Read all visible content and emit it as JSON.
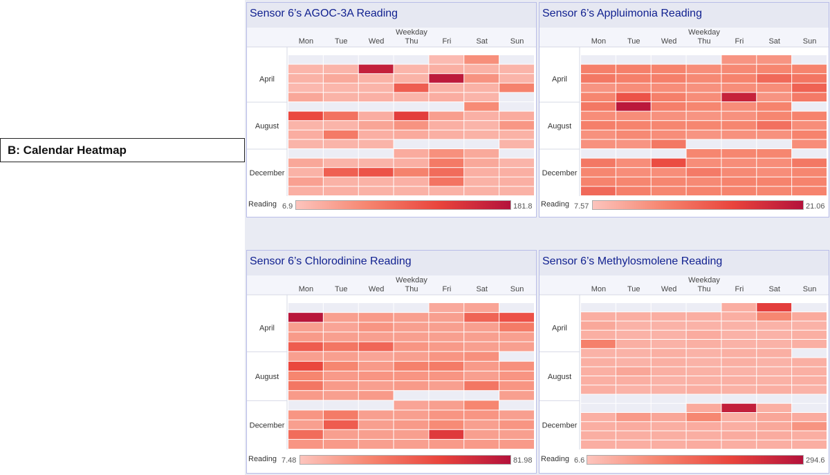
{
  "callout": {
    "label": "B: Calendar Heatmap"
  },
  "colors": {
    "low": "#fcc4bd",
    "mid": "#f6856f",
    "high": "#e9443c",
    "max": "#b4123b",
    "empty": "#ecedf5",
    "title": "#0f1f8f"
  },
  "chart_data": [
    {
      "type": "heatmap",
      "title": "Sensor 6’s AGOC-3A Reading",
      "xlabel": "Weekday",
      "x_categories": [
        "Mon",
        "Tue",
        "Wed",
        "Thu",
        "Fri",
        "Sat",
        "Sun"
      ],
      "months": [
        "April",
        "August",
        "December"
      ],
      "legend_label": "Reading",
      "legend_min": "6.9",
      "legend_max": "181.8",
      "range": [
        6.9,
        181.8
      ],
      "values": [
        [
          null,
          null,
          null,
          null,
          16,
          56,
          null
        ],
        [
          21,
          22,
          165,
          21,
          26,
          24,
          22
        ],
        [
          24,
          32,
          24,
          23,
          172,
          52,
          22
        ],
        [
          18,
          20,
          22,
          100,
          24,
          24,
          68
        ],
        [
          34,
          23,
          25,
          22,
          28,
          22,
          null
        ],
        [
          null,
          null,
          null,
          null,
          null,
          60,
          null
        ],
        [
          120,
          82,
          28,
          130,
          42,
          25,
          30
        ],
        [
          22,
          22,
          36,
          52,
          26,
          22,
          49
        ],
        [
          28,
          75,
          26,
          31,
          26,
          24,
          24
        ],
        [
          22,
          22,
          22,
          null,
          null,
          null,
          22
        ],
        [
          null,
          null,
          null,
          30,
          55,
          32,
          null
        ],
        [
          34,
          22,
          22,
          26,
          75,
          33,
          22
        ],
        [
          24,
          98,
          110,
          68,
          88,
          26,
          26
        ],
        [
          40,
          24,
          24,
          25,
          80,
          24,
          26
        ],
        [
          26,
          26,
          24,
          24,
          24,
          24,
          24
        ]
      ]
    },
    {
      "type": "heatmap",
      "title": "Sensor 6’s Appluimonia Reading",
      "xlabel": "Weekday",
      "x_categories": [
        "Mon",
        "Tue",
        "Wed",
        "Thu",
        "Fri",
        "Sat",
        "Sun"
      ],
      "months": [
        "April",
        "August",
        "December"
      ],
      "legend_label": "Reading",
      "legend_min": "7.57",
      "legend_max": "21.06",
      "range": [
        7.57,
        21.06
      ],
      "values": [
        [
          null,
          null,
          null,
          null,
          11,
          11,
          null
        ],
        [
          12.5,
          12.5,
          12.2,
          11.5,
          11.8,
          12,
          12.2
        ],
        [
          13,
          12.5,
          12.5,
          11.8,
          12.2,
          14,
          13.2
        ],
        [
          11,
          11.5,
          11.5,
          11.2,
          11.5,
          11.5,
          14.5
        ],
        [
          12,
          15.5,
          12.5,
          11.5,
          19.5,
          11,
          12.8
        ],
        [
          13,
          20.5,
          12.5,
          12,
          11.5,
          12.2,
          null
        ],
        [
          11.5,
          11.5,
          11.2,
          11,
          11.2,
          12,
          12.2
        ],
        [
          12.5,
          12.2,
          12,
          12,
          12,
          13.5,
          11.5
        ],
        [
          11.2,
          11.8,
          11.5,
          11,
          11.2,
          11.2,
          12.2
        ],
        [
          11.2,
          11,
          13,
          null,
          null,
          null,
          11.5
        ],
        [
          null,
          null,
          null,
          12,
          12,
          12,
          null
        ],
        [
          13,
          11.5,
          16,
          11.5,
          11.5,
          11.5,
          13
        ],
        [
          12,
          11.5,
          11.5,
          12.8,
          11.8,
          11.5,
          12
        ],
        [
          12.2,
          12,
          12,
          11.8,
          12.2,
          12.2,
          12.2
        ],
        [
          14,
          12.5,
          12,
          12.2,
          12.2,
          12,
          12.2
        ]
      ]
    },
    {
      "type": "heatmap",
      "title": "Sensor 6’s Chlorodinine Reading",
      "xlabel": "Weekday",
      "x_categories": [
        "Mon",
        "Tue",
        "Wed",
        "Thu",
        "Fri",
        "Sat",
        "Sun"
      ],
      "months": [
        "April",
        "August",
        "December"
      ],
      "legend_label": "Reading",
      "legend_min": "7.48",
      "legend_max": "81.98",
      "range": [
        7.48,
        81.98
      ],
      "values": [
        [
          null,
          null,
          null,
          null,
          18,
          20,
          null
        ],
        [
          80,
          22,
          24,
          22,
          22,
          45,
          52
        ],
        [
          22,
          20,
          26,
          22,
          22,
          22,
          36
        ],
        [
          24,
          22,
          22,
          22,
          22,
          22,
          22
        ],
        [
          48,
          38,
          44,
          26,
          24,
          22,
          22
        ],
        [
          22,
          22,
          20,
          22,
          26,
          28,
          null
        ],
        [
          56,
          32,
          24,
          34,
          36,
          24,
          28
        ],
        [
          32,
          24,
          26,
          26,
          26,
          22,
          26
        ],
        [
          38,
          24,
          22,
          24,
          22,
          38,
          26
        ],
        [
          24,
          22,
          24,
          null,
          null,
          null,
          22
        ],
        [
          null,
          null,
          null,
          20,
          22,
          32,
          null
        ],
        [
          26,
          36,
          22,
          22,
          26,
          26,
          22
        ],
        [
          22,
          48,
          22,
          24,
          30,
          22,
          26
        ],
        [
          42,
          22,
          22,
          22,
          62,
          22,
          22
        ],
        [
          26,
          24,
          22,
          22,
          24,
          24,
          24
        ]
      ]
    },
    {
      "type": "heatmap",
      "title": "Sensor 6’s Methylosmolene Reading",
      "xlabel": "Weekday",
      "x_categories": [
        "Mon",
        "Tue",
        "Wed",
        "Thu",
        "Fri",
        "Sat",
        "Sun"
      ],
      "months": [
        "April",
        "August",
        "December"
      ],
      "legend_label": "Reading",
      "legend_min": "6.6",
      "legend_max": "294.6",
      "range": [
        6.6,
        294.6
      ],
      "values": [
        [
          null,
          null,
          null,
          null,
          40,
          210,
          null
        ],
        [
          40,
          40,
          40,
          40,
          40,
          100,
          46
        ],
        [
          50,
          34,
          34,
          34,
          34,
          34,
          34
        ],
        [
          38,
          34,
          34,
          44,
          34,
          34,
          38
        ],
        [
          110,
          38,
          34,
          38,
          34,
          34,
          38
        ],
        [
          34,
          34,
          38,
          34,
          38,
          38,
          null
        ],
        [
          38,
          34,
          38,
          34,
          38,
          34,
          38
        ],
        [
          38,
          52,
          38,
          36,
          34,
          34,
          38
        ],
        [
          38,
          40,
          34,
          36,
          38,
          36,
          38
        ],
        [
          40,
          34,
          34,
          40,
          36,
          40,
          34
        ],
        [
          null,
          null,
          null,
          null,
          null,
          null,
          null
        ],
        [
          null,
          null,
          null,
          46,
          270,
          38,
          null
        ],
        [
          38,
          72,
          52,
          100,
          38,
          52,
          44
        ],
        [
          40,
          44,
          40,
          44,
          40,
          50,
          80
        ],
        [
          40,
          40,
          40,
          40,
          44,
          44,
          40
        ],
        [
          40,
          40,
          40,
          44,
          40,
          40,
          40
        ]
      ]
    }
  ]
}
